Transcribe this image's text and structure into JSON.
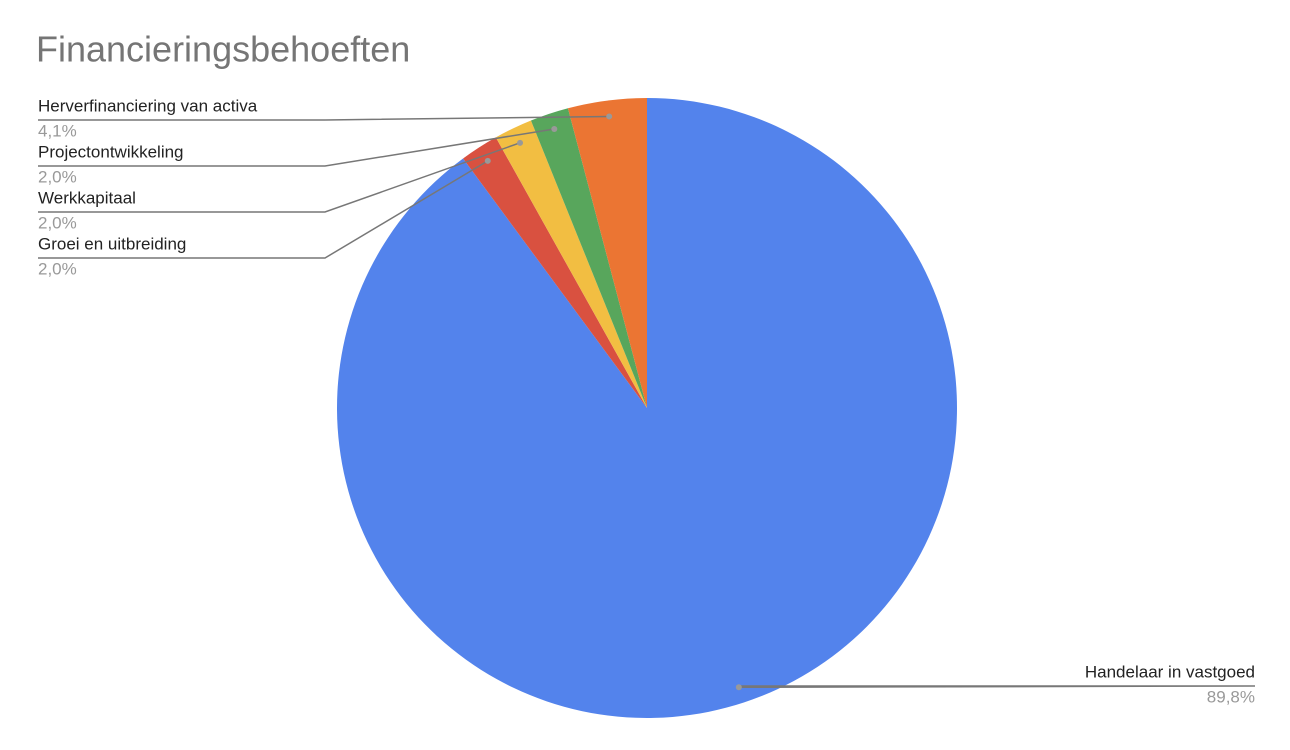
{
  "chart_data": {
    "type": "pie",
    "title": "Financieringsbehoeften",
    "categories": [
      "Handelaar in vastgoed",
      "Groei en uitbreiding",
      "Werkkapitaal",
      "Projectontwikkeling",
      "Herverfinanciering van activa"
    ],
    "values": [
      89.8,
      2.0,
      2.0,
      2.0,
      4.1
    ],
    "value_labels": [
      "89,8%",
      "2,0%",
      "2,0%",
      "2,0%",
      "4,1%"
    ],
    "colors": [
      "#5383ec",
      "#d95140",
      "#f2be42",
      "#58a65c",
      "#eb7533"
    ]
  }
}
